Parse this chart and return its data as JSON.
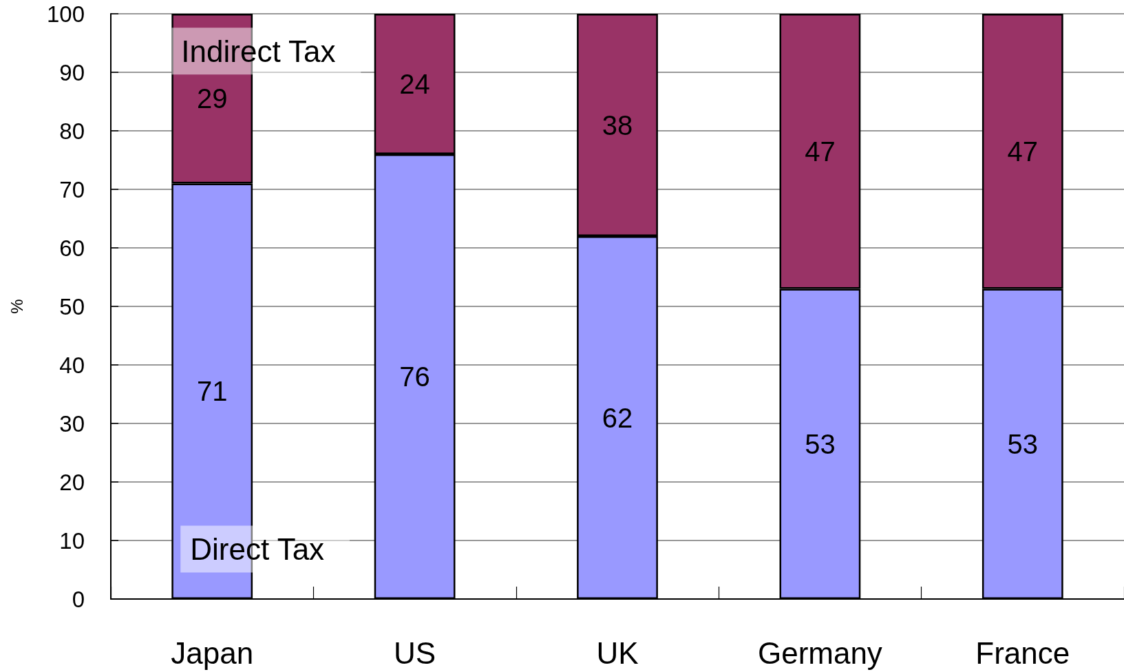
{
  "chart_data": {
    "type": "bar",
    "stacked": true,
    "categories": [
      "Japan",
      "US",
      "UK",
      "Germany",
      "France"
    ],
    "series": [
      {
        "name": "Direct Tax",
        "color": "#9999ff",
        "values": [
          71,
          76,
          62,
          53,
          53
        ]
      },
      {
        "name": "Indirect Tax",
        "color": "#993366",
        "values": [
          29,
          24,
          38,
          47,
          47
        ]
      }
    ],
    "ylabel": "%",
    "ylim": [
      0,
      100
    ],
    "yticks": [
      0,
      10,
      20,
      30,
      40,
      50,
      60,
      70,
      80,
      90,
      100
    ],
    "grid": "y",
    "legend": false,
    "data_labels": true
  }
}
